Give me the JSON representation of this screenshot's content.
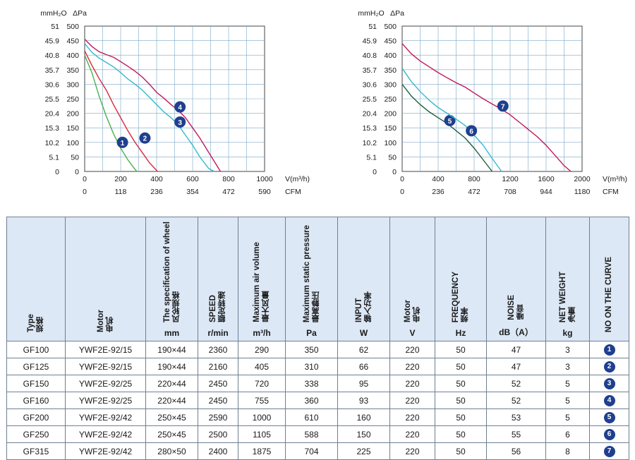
{
  "chart_data": [
    {
      "type": "line",
      "y_unit_left": "mmH₂O",
      "y_unit_right": "ΔPa",
      "x_unit_top": "V(m³/h)",
      "x_unit_bottom": "CFM",
      "y_ticks_mmh2o": [
        "51",
        "45.9",
        "40.8",
        "35.7",
        "30.6",
        "25.5",
        "20.4",
        "15.3",
        "10.2",
        "5.1",
        "0"
      ],
      "y_ticks_pa": [
        "500",
        "450",
        "400",
        "350",
        "300",
        "250",
        "200",
        "150",
        "100",
        "50",
        "0"
      ],
      "x_ticks_m3h": [
        "0",
        "200",
        "400",
        "600",
        "800",
        "1000"
      ],
      "x_ticks_cfm": [
        "0",
        "118",
        "236",
        "354",
        "472",
        "590"
      ],
      "xlim": [
        0,
        1000
      ],
      "ylim": [
        0,
        500
      ],
      "grid": true,
      "series": [
        {
          "name": "1",
          "color": "#4caf50",
          "points": [
            [
              0,
              400
            ],
            [
              40,
              340
            ],
            [
              80,
              260
            ],
            [
              120,
              190
            ],
            [
              160,
              130
            ],
            [
              200,
              80
            ],
            [
              240,
              40
            ],
            [
              270,
              15
            ],
            [
              290,
              0
            ]
          ],
          "label_pos": [
            210,
            100
          ]
        },
        {
          "name": "2",
          "color": "#d7263d",
          "points": [
            [
              0,
              415
            ],
            [
              40,
              365
            ],
            [
              80,
              320
            ],
            [
              120,
              280
            ],
            [
              160,
              230
            ],
            [
              200,
              185
            ],
            [
              240,
              140
            ],
            [
              280,
              100
            ],
            [
              320,
              65
            ],
            [
              360,
              30
            ],
            [
              405,
              0
            ]
          ],
          "label_pos": [
            335,
            115
          ]
        },
        {
          "name": "3",
          "color": "#35b8cc",
          "points": [
            [
              0,
              440
            ],
            [
              40,
              410
            ],
            [
              80,
              390
            ],
            [
              120,
              375
            ],
            [
              160,
              360
            ],
            [
              200,
              340
            ],
            [
              240,
              318
            ],
            [
              280,
              300
            ],
            [
              320,
              280
            ],
            [
              360,
              255
            ],
            [
              400,
              230
            ],
            [
              440,
              205
            ],
            [
              480,
              185
            ],
            [
              520,
              160
            ],
            [
              560,
              125
            ],
            [
              600,
              90
            ],
            [
              640,
              50
            ],
            [
              690,
              10
            ],
            [
              720,
              0
            ]
          ],
          "label_pos": [
            530,
            170
          ]
        },
        {
          "name": "4",
          "color": "#c2185b",
          "points": [
            [
              0,
              455
            ],
            [
              40,
              430
            ],
            [
              80,
              412
            ],
            [
              120,
              402
            ],
            [
              160,
              393
            ],
            [
              200,
              378
            ],
            [
              240,
              362
            ],
            [
              280,
              345
            ],
            [
              320,
              325
            ],
            [
              360,
              300
            ],
            [
              400,
              272
            ],
            [
              440,
              252
            ],
            [
              480,
              230
            ],
            [
              520,
              210
            ],
            [
              560,
              185
            ],
            [
              600,
              150
            ],
            [
              640,
              115
            ],
            [
              680,
              75
            ],
            [
              720,
              35
            ],
            [
              755,
              0
            ]
          ],
          "label_pos": [
            530,
            222
          ]
        }
      ]
    },
    {
      "type": "line",
      "y_unit_left": "mmH₂O",
      "y_unit_right": "ΔPa",
      "x_unit_top": "V(m³/h)",
      "x_unit_bottom": "CFM",
      "y_ticks_mmh2o": [
        "51",
        "45.9",
        "40.8",
        "35.7",
        "30.6",
        "25.5",
        "20.4",
        "15.3",
        "10.2",
        "5.1",
        "0"
      ],
      "y_ticks_pa": [
        "500",
        "450",
        "400",
        "350",
        "300",
        "250",
        "200",
        "150",
        "100",
        "50",
        "0"
      ],
      "x_ticks_m3h": [
        "0",
        "400",
        "800",
        "1200",
        "1600",
        "2000"
      ],
      "x_ticks_cfm": [
        "0",
        "236",
        "472",
        "708",
        "944",
        "1180"
      ],
      "xlim": [
        0,
        2000
      ],
      "ylim": [
        0,
        500
      ],
      "grid": true,
      "series": [
        {
          "name": "5",
          "color": "#1f5e3a",
          "points": [
            [
              0,
              300
            ],
            [
              100,
              260
            ],
            [
              200,
              230
            ],
            [
              300,
              205
            ],
            [
              400,
              185
            ],
            [
              500,
              165
            ],
            [
              600,
              140
            ],
            [
              700,
              115
            ],
            [
              800,
              80
            ],
            [
              900,
              40
            ],
            [
              1000,
              0
            ]
          ],
          "label_pos": [
            530,
            175
          ]
        },
        {
          "name": "6",
          "color": "#35b8cc",
          "points": [
            [
              0,
              355
            ],
            [
              100,
              310
            ],
            [
              200,
              275
            ],
            [
              300,
              245
            ],
            [
              400,
              220
            ],
            [
              500,
              200
            ],
            [
              600,
              180
            ],
            [
              700,
              158
            ],
            [
              800,
              125
            ],
            [
              900,
              90
            ],
            [
              1000,
              45
            ],
            [
              1105,
              0
            ]
          ],
          "label_pos": [
            770,
            140
          ]
        },
        {
          "name": "7",
          "color": "#c2185b",
          "points": [
            [
              0,
              440
            ],
            [
              100,
              405
            ],
            [
              200,
              380
            ],
            [
              300,
              360
            ],
            [
              400,
              340
            ],
            [
              500,
              322
            ],
            [
              600,
              305
            ],
            [
              700,
              290
            ],
            [
              800,
              270
            ],
            [
              900,
              250
            ],
            [
              1000,
              232
            ],
            [
              1100,
              215
            ],
            [
              1200,
              195
            ],
            [
              1300,
              170
            ],
            [
              1400,
              145
            ],
            [
              1500,
              120
            ],
            [
              1600,
              90
            ],
            [
              1700,
              55
            ],
            [
              1800,
              20
            ],
            [
              1875,
              0
            ]
          ],
          "label_pos": [
            1120,
            225
          ]
        }
      ]
    }
  ],
  "table": {
    "headers": [
      {
        "en": "Type",
        "cn": "规格",
        "unit": ""
      },
      {
        "en": "Motor",
        "cn": "电机",
        "unit": ""
      },
      {
        "en": "The specification of wheel",
        "cn": "风轮规格",
        "unit": "mm"
      },
      {
        "en": "SPEED",
        "cn": "额定转速",
        "unit": "r/min"
      },
      {
        "en": "Maximum air volume",
        "cn": "最大风量",
        "unit": "m³/h"
      },
      {
        "en": "Maximum static pressure",
        "cn": "最高静压",
        "unit": "Pa"
      },
      {
        "en": "INPUT",
        "cn": "输入功率",
        "unit": "W"
      },
      {
        "en": "Motor",
        "cn": "电机",
        "unit": "V"
      },
      {
        "en": "FREQUENCY",
        "cn": "频率",
        "unit": "Hz"
      },
      {
        "en": "NOISE",
        "cn": "噪音",
        "unit": "dB（A）"
      },
      {
        "en": "NET WEIGHT",
        "cn": "净重",
        "unit": "kg"
      },
      {
        "en": "NO ON THE CURVE",
        "cn": "",
        "unit": ""
      }
    ],
    "rows": [
      {
        "type": "GF100",
        "motor": "YWF2E-92/15",
        "wheel": "190×44",
        "speed": "2360",
        "air": "290",
        "pressure": "350",
        "input": "62",
        "volt": "220",
        "freq": "50",
        "noise": "47",
        "weight": "3",
        "curve": "1"
      },
      {
        "type": "GF125",
        "motor": "YWF2E-92/15",
        "wheel": "190×44",
        "speed": "2160",
        "air": "405",
        "pressure": "310",
        "input": "66",
        "volt": "220",
        "freq": "50",
        "noise": "47",
        "weight": "3",
        "curve": "2"
      },
      {
        "type": "GF150",
        "motor": "YWF2E-92/25",
        "wheel": "220×44",
        "speed": "2450",
        "air": "720",
        "pressure": "338",
        "input": "95",
        "volt": "220",
        "freq": "50",
        "noise": "52",
        "weight": "5",
        "curve": "3"
      },
      {
        "type": "GF160",
        "motor": "YWF2E-92/25",
        "wheel": "220×44",
        "speed": "2450",
        "air": "755",
        "pressure": "360",
        "input": "93",
        "volt": "220",
        "freq": "50",
        "noise": "52",
        "weight": "5",
        "curve": "4"
      },
      {
        "type": "GF200",
        "motor": "YWF2E-92/42",
        "wheel": "250×45",
        "speed": "2590",
        "air": "1000",
        "pressure": "610",
        "input": "160",
        "volt": "220",
        "freq": "50",
        "noise": "53",
        "weight": "5",
        "curve": "5"
      },
      {
        "type": "GF250",
        "motor": "YWF2E-92/42",
        "wheel": "250×45",
        "speed": "2500",
        "air": "1105",
        "pressure": "588",
        "input": "150",
        "volt": "220",
        "freq": "50",
        "noise": "55",
        "weight": "6",
        "curve": "6"
      },
      {
        "type": "GF315",
        "motor": "YWF2E-92/42",
        "wheel": "280×50",
        "speed": "2400",
        "air": "1875",
        "pressure": "704",
        "input": "225",
        "volt": "220",
        "freq": "50",
        "noise": "56",
        "weight": "8",
        "curve": "7"
      }
    ]
  }
}
